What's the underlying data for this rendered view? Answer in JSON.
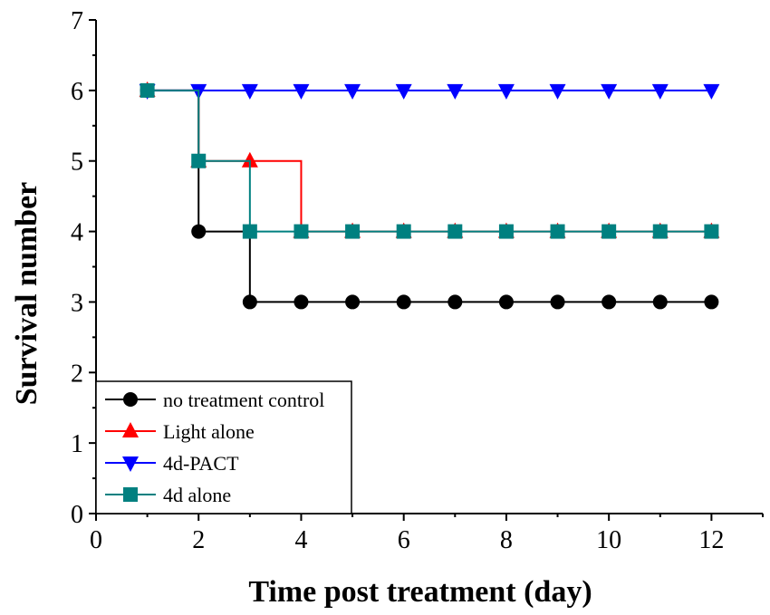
{
  "chart_data": {
    "type": "line",
    "step": true,
    "title": "",
    "xlabel": "Time post treatment (day)",
    "ylabel": "Survival number",
    "xlim": [
      0,
      13
    ],
    "ylim": [
      0,
      7
    ],
    "xticks": [
      0,
      2,
      4,
      6,
      8,
      10,
      12
    ],
    "yticks": [
      0,
      1,
      2,
      3,
      4,
      5,
      6,
      7
    ],
    "grid": false,
    "legend_position": "bottom-left",
    "x": [
      1,
      2,
      3,
      4,
      5,
      6,
      7,
      8,
      9,
      10,
      11,
      12
    ],
    "series": [
      {
        "name": "no treatment control",
        "color": "#000000",
        "marker": "circle",
        "values": [
          6,
          4,
          3,
          3,
          3,
          3,
          3,
          3,
          3,
          3,
          3,
          3
        ]
      },
      {
        "name": "Light alone",
        "color": "#ff0000",
        "marker": "triangle-up",
        "values": [
          6,
          5,
          5,
          4,
          4,
          4,
          4,
          4,
          4,
          4,
          4,
          4
        ]
      },
      {
        "name": "4d-PACT",
        "color": "#0000ff",
        "marker": "triangle-down",
        "values": [
          6,
          6,
          6,
          6,
          6,
          6,
          6,
          6,
          6,
          6,
          6,
          6
        ]
      },
      {
        "name": "4d alone",
        "color": "#008080",
        "marker": "square",
        "values": [
          6,
          5,
          4,
          4,
          4,
          4,
          4,
          4,
          4,
          4,
          4,
          4
        ]
      }
    ]
  }
}
